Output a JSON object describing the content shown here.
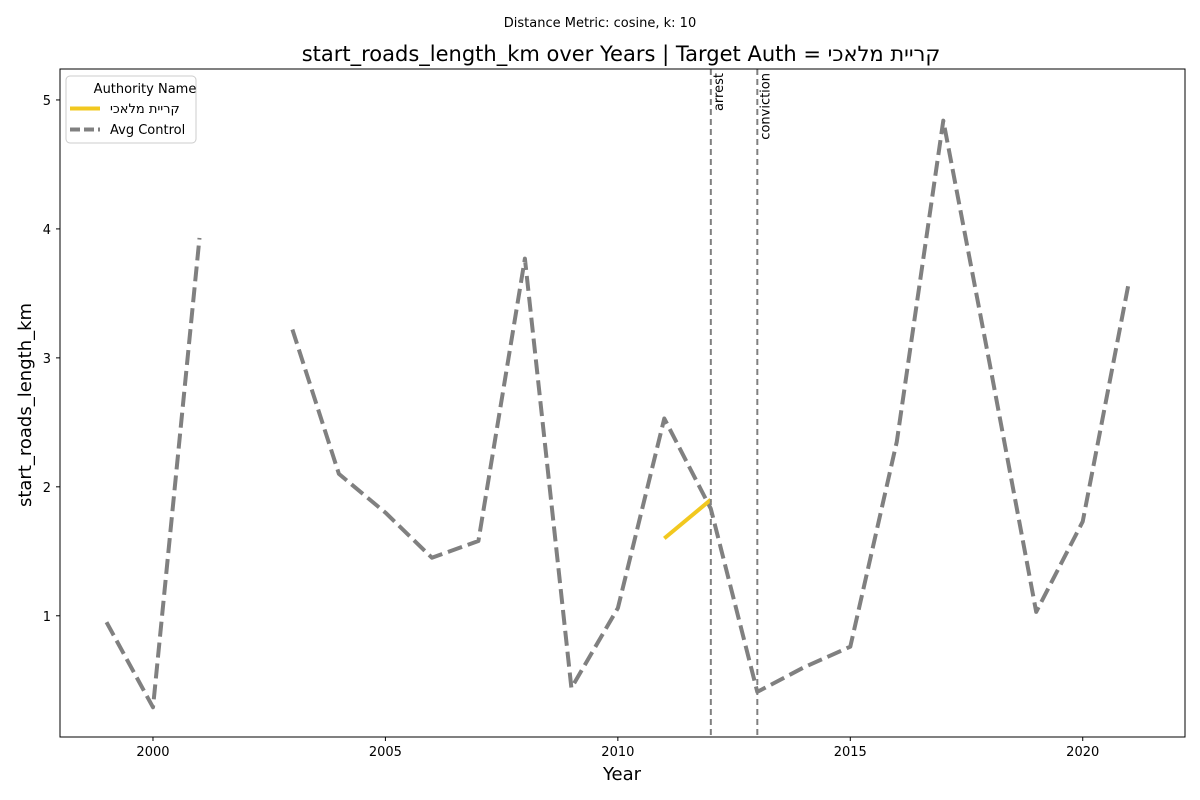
{
  "chart_data": {
    "type": "line",
    "suptitle": "Distance Metric: cosine, k: 10",
    "title": "start_roads_length_km over Years | Target Auth = קריית מלאכי",
    "xlabel": "Year",
    "ylabel": "start_roads_length_km",
    "xlim": [
      1998.0,
      2022.2
    ],
    "ylim": [
      0.06,
      5.24
    ],
    "xticks": [
      2000,
      2005,
      2010,
      2015,
      2020
    ],
    "yticks": [
      1,
      2,
      3,
      4,
      5
    ],
    "grid": false,
    "legend": {
      "title": "Authority Name",
      "placement": "upper left"
    },
    "series": [
      {
        "name": "קריית מלאכי",
        "style": "solid",
        "color": "#f2c81f",
        "points": [
          [
            2011,
            1.6
          ],
          [
            2012,
            1.9
          ]
        ]
      },
      {
        "name": "Avg Control",
        "style": "dashed",
        "color": "#808080",
        "points": [
          [
            1999,
            0.95
          ],
          [
            2000,
            0.29
          ],
          [
            2001,
            3.93
          ],
          [
            2002,
            null
          ],
          [
            2003,
            3.22
          ],
          [
            2004,
            2.1
          ],
          [
            2005,
            1.8
          ],
          [
            2006,
            1.45
          ],
          [
            2007,
            1.58
          ],
          [
            2008,
            3.77
          ],
          [
            2009,
            0.44
          ],
          [
            2010,
            1.06
          ],
          [
            2011,
            2.53
          ],
          [
            2012,
            1.83
          ],
          [
            2013,
            0.41
          ],
          [
            2014,
            0.6
          ],
          [
            2015,
            0.76
          ],
          [
            2016,
            2.35
          ],
          [
            2017,
            4.84
          ],
          [
            2018,
            2.95
          ],
          [
            2019,
            1.03
          ],
          [
            2020,
            1.73
          ],
          [
            2021,
            3.6
          ]
        ]
      }
    ],
    "annotations": [
      {
        "x": 2012,
        "label": "arrest"
      },
      {
        "x": 2013,
        "label": "conviction"
      }
    ]
  }
}
